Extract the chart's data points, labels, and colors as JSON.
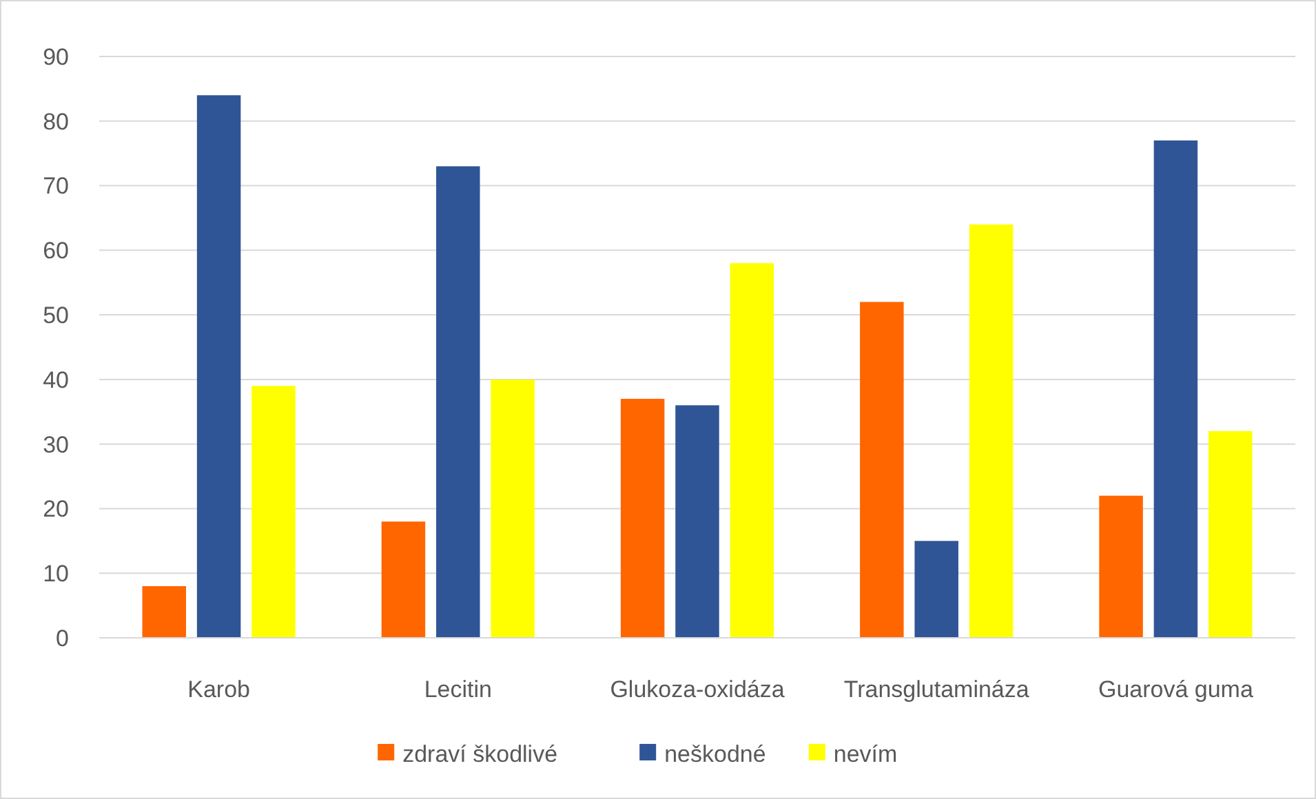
{
  "chart_data": {
    "type": "bar",
    "categories": [
      "Karob",
      "Lecitin",
      "Glukoza-oxidáza",
      "Transglutamináza",
      "Guarová guma"
    ],
    "series": [
      {
        "name": "zdraví škodlivé",
        "color": "#ff6600",
        "values": [
          8,
          18,
          37,
          52,
          22
        ]
      },
      {
        "name": "neškodné",
        "color": "#2f5597",
        "values": [
          84,
          73,
          36,
          15,
          77
        ]
      },
      {
        "name": "nevím",
        "color": "#ffff00",
        "values": [
          39,
          40,
          58,
          64,
          32
        ]
      }
    ],
    "ylim": [
      0,
      90
    ],
    "yticks": [
      0,
      10,
      20,
      30,
      40,
      50,
      60,
      70,
      80,
      90
    ],
    "grid": "y",
    "legend": "bottom"
  }
}
